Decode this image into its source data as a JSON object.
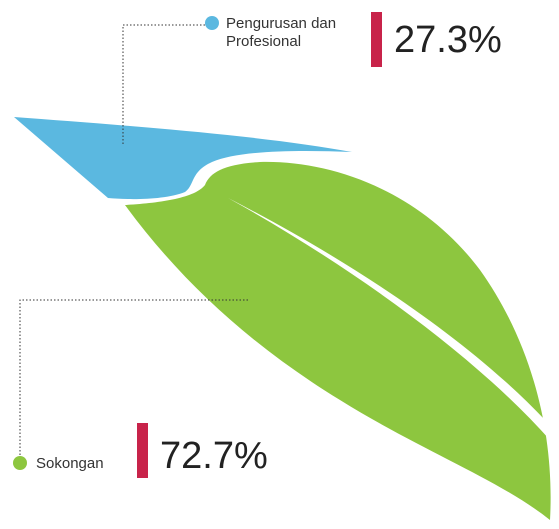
{
  "chart_data": {
    "type": "pictorial",
    "categories": [
      "Pengurusan dan Profesional",
      "Sokongan"
    ],
    "values": [
      27.3,
      72.7
    ],
    "value_labels": [
      "27.3%",
      "72.7%"
    ],
    "colors": [
      "#5bb8e0",
      "#8dc63f"
    ],
    "accent_color": "#c8234a"
  }
}
